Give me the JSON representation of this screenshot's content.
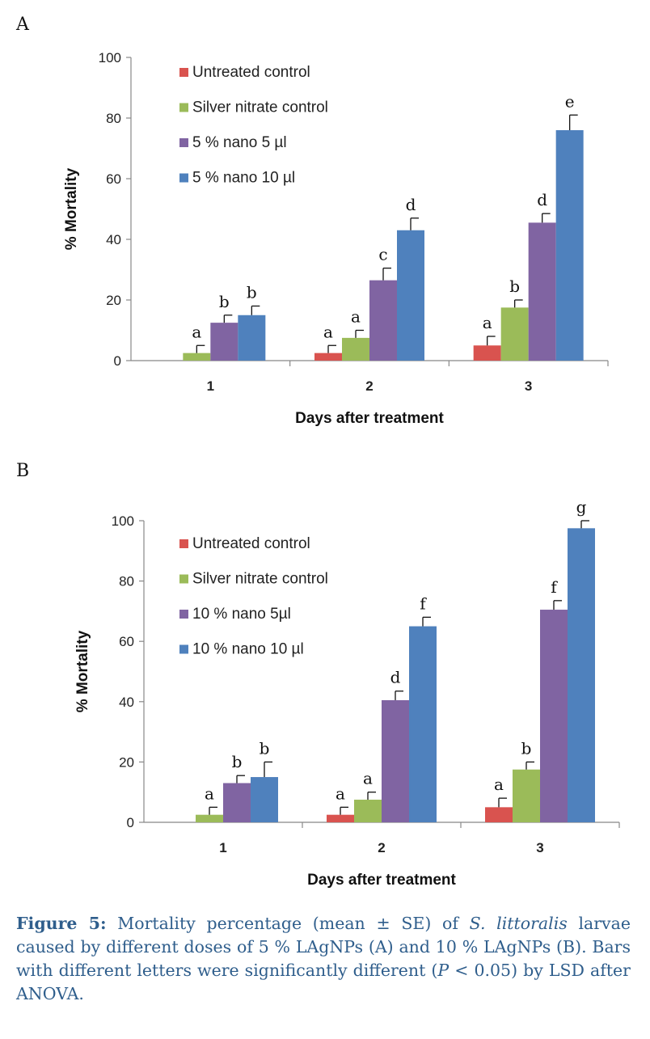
{
  "chart_data": [
    {
      "panel": "A",
      "type": "bar",
      "xlabel": "Days after treatment",
      "ylabel": "% Mortality",
      "ylim": [
        0,
        100
      ],
      "yticks": [
        "0",
        "20",
        "40",
        "60",
        "80",
        "100"
      ],
      "categories": [
        "1",
        "2",
        "3"
      ],
      "legend_position": "top-left",
      "series": [
        {
          "name": "Untreated control",
          "color": "#d9534f",
          "values": [
            0,
            2.5,
            5
          ],
          "errors": [
            0,
            2.5,
            3
          ],
          "letters": [
            "",
            "a",
            "a"
          ]
        },
        {
          "name": "Silver nitrate control",
          "color": "#9bbb59",
          "values": [
            2.5,
            7.5,
            17.5
          ],
          "errors": [
            2.5,
            2.5,
            2.5
          ],
          "letters": [
            "a",
            "a",
            "b"
          ]
        },
        {
          "name": "5 % nano 5 µl",
          "color": "#8064a2",
          "values": [
            12.5,
            26.5,
            45.5
          ],
          "errors": [
            2.5,
            4,
            3
          ],
          "letters": [
            "b",
            "c",
            "d"
          ]
        },
        {
          "name": "5 % nano 10 µl",
          "color": "#4f81bd",
          "values": [
            15,
            43,
            76
          ],
          "errors": [
            3,
            4,
            5
          ],
          "letters": [
            "b",
            "d",
            "e"
          ]
        }
      ]
    },
    {
      "panel": "B",
      "type": "bar",
      "xlabel": "Days after treatment",
      "ylabel": "% Mortality",
      "ylim": [
        0,
        100
      ],
      "yticks": [
        "0",
        "20",
        "40",
        "60",
        "80",
        "100"
      ],
      "categories": [
        "1",
        "2",
        "3"
      ],
      "legend_position": "top-left",
      "series": [
        {
          "name": "Untreated control",
          "color": "#d9534f",
          "values": [
            0,
            2.5,
            5
          ],
          "errors": [
            0,
            2.5,
            3
          ],
          "letters": [
            "",
            "a",
            "a"
          ]
        },
        {
          "name": "Silver nitrate control",
          "color": "#9bbb59",
          "values": [
            2.5,
            7.5,
            17.5
          ],
          "errors": [
            2.5,
            2.5,
            2.5
          ],
          "letters": [
            "a",
            "a",
            "b"
          ]
        },
        {
          "name": "10 % nano 5µl",
          "color": "#8064a2",
          "values": [
            13,
            40.5,
            70.5
          ],
          "errors": [
            2.5,
            3,
            3
          ],
          "letters": [
            "b",
            "d",
            "f"
          ]
        },
        {
          "name": "10 % nano 10 µl",
          "color": "#4f81bd",
          "values": [
            15,
            65,
            97.5
          ],
          "errors": [
            5,
            3,
            2.5
          ],
          "letters": [
            "b",
            "f",
            "g"
          ]
        }
      ]
    }
  ],
  "caption": {
    "label": "Figure 5:",
    "text1": " Mortality percentage (mean ± SE) of ",
    "species": "S. littoralis",
    "text2": " larvae caused by different doses of 5 % LAgNPs (A) and 10 % LAgNPs (B). Bars with different letters were significantly different (",
    "p": "P",
    "text3": " < 0.05) by LSD after ANOVA."
  }
}
